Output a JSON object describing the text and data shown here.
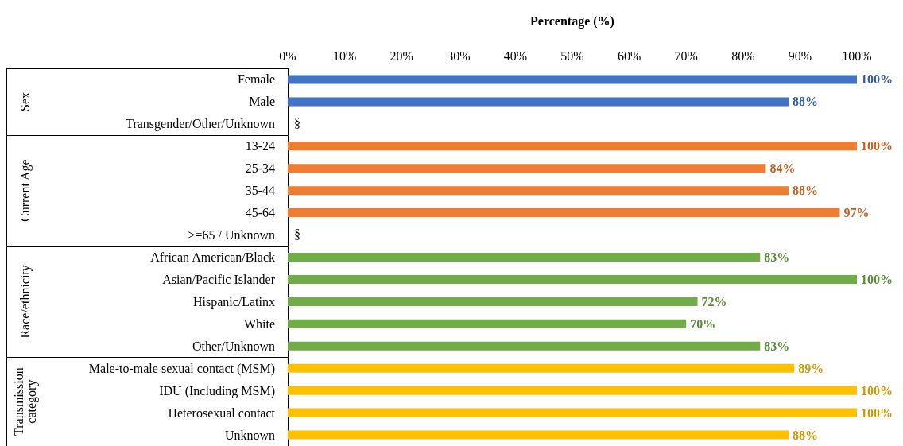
{
  "chart_data": {
    "type": "bar",
    "orientation": "horizontal",
    "xlabel": "Percentage (%)",
    "categories": [
      "Female",
      "Male",
      "Transgender/Other/Unknown",
      "13-24",
      "25-34",
      "35-44",
      "45-64",
      ">=65 / Unknown",
      "African American/Black",
      "Asian/Pacific Islander",
      "Hispanic/Latinx",
      "White",
      "Other/Unknown",
      "Male-to-male sexual contact (MSM)",
      "IDU (Including MSM)",
      "Heterosexual contact",
      "Unknown"
    ],
    "xlim": [
      0,
      100
    ],
    "xticks": [
      {
        "value": 0,
        "label": "0%"
      },
      {
        "value": 10,
        "label": "10%"
      },
      {
        "value": 20,
        "label": "20%"
      },
      {
        "value": 30,
        "label": "30%"
      },
      {
        "value": 40,
        "label": "40%"
      },
      {
        "value": 50,
        "label": "50%"
      },
      {
        "value": 60,
        "label": "60%"
      },
      {
        "value": 70,
        "label": "70%"
      },
      {
        "value": 80,
        "label": "80%"
      },
      {
        "value": 90,
        "label": "90%"
      },
      {
        "value": 100,
        "label": "100%"
      }
    ],
    "series": [
      {
        "color": "#4472c4",
        "values": [
          100,
          88,
          null,
          null,
          null,
          null,
          null,
          null,
          null,
          null,
          null,
          null,
          null,
          null,
          null,
          null,
          null
        ],
        "value_labels": [
          "100%",
          "88%",
          "§",
          null,
          null,
          null,
          null,
          null,
          null,
          null,
          null,
          null,
          null,
          null,
          null,
          null,
          null
        ]
      },
      {
        "color": "#ed7d31",
        "values": [
          null,
          null,
          null,
          100,
          84,
          88,
          97,
          null,
          null,
          null,
          null,
          null,
          null,
          null,
          null,
          null,
          null
        ],
        "value_labels": [
          null,
          null,
          null,
          "100%",
          "84%",
          "88%",
          "97%",
          "§",
          null,
          null,
          null,
          null,
          null,
          null,
          null,
          null,
          null
        ]
      },
      {
        "color": "#70ad47",
        "values": [
          null,
          null,
          null,
          null,
          null,
          null,
          null,
          null,
          83,
          100,
          72,
          70,
          83,
          null,
          null,
          null,
          null
        ],
        "value_labels": [
          null,
          null,
          null,
          null,
          null,
          null,
          null,
          null,
          "83%",
          "100%",
          "72%",
          "70%",
          "83%",
          null,
          null,
          null,
          null
        ]
      },
      {
        "color": "#ffc000",
        "values": [
          null,
          null,
          null,
          null,
          null,
          null,
          null,
          null,
          null,
          null,
          null,
          null,
          null,
          89,
          100,
          100,
          88
        ],
        "value_labels": [
          null,
          null,
          null,
          null,
          null,
          null,
          null,
          null,
          null,
          null,
          null,
          null,
          null,
          "89%",
          "100%",
          "100%",
          "88%"
        ]
      }
    ],
    "annotations": [
      "Sex",
      "Current Age",
      "Race/ethnicity",
      "Transmission\ncategory"
    ],
    "grid": false
  }
}
